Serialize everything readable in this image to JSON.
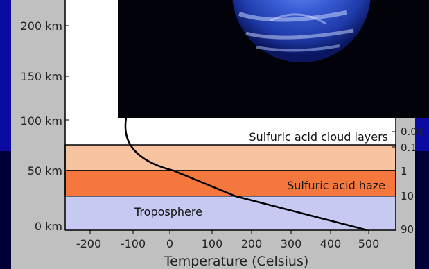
{
  "diagram": {
    "y_ticks": [
      "200 km",
      "150 km",
      "100 km",
      "50 km",
      "0 km"
    ],
    "x_ticks": [
      "-200",
      "-100",
      "0",
      "100",
      "200",
      "300",
      "400",
      "500"
    ],
    "x_label": "Temperature (Celsius)",
    "pressure_ticks": [
      "0.01",
      "0.1",
      "1",
      "10",
      "90"
    ],
    "layers": {
      "clouds": "Sulfuric acid cloud layers",
      "haze": "Sulfuric acid haze",
      "troposphere": "Troposphere"
    },
    "colors": {
      "background": "#0a0aa0",
      "figure_panel": "#c0c0c0",
      "plot_area": "#ffffff",
      "cloud_layer": "#f8c3a0",
      "haze_layer": "#f4783e",
      "troposphere_layer": "#c6c9f2",
      "planet_blue": "#2f50c8"
    },
    "planet_image": "venus-image"
  }
}
